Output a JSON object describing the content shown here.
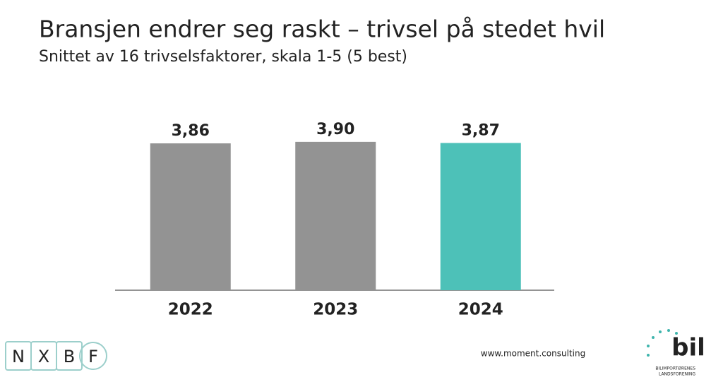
{
  "chart_data": {
    "type": "bar",
    "title": "Bransjen endrer seg raskt – trivsel på stedet hvil",
    "subtitle": "Snittet av 16 trivselsfaktorer, skala 1-5 (5 best)",
    "categories": [
      "2022",
      "2023",
      "2024"
    ],
    "values": [
      3.86,
      3.9,
      3.87
    ],
    "value_labels": [
      "3,86",
      "3,90",
      "3,87"
    ],
    "colors": [
      "#939393",
      "#939393",
      "#4dc1b8"
    ],
    "ylim": [
      0,
      4
    ]
  },
  "footer": {
    "url": "www.moment.consulting",
    "logo_left": [
      "N",
      "X",
      "B",
      "F"
    ],
    "logo_right": "bil",
    "logo_right_caption": [
      "BILIMPORTØRENES",
      "LANDSFORENING"
    ]
  }
}
